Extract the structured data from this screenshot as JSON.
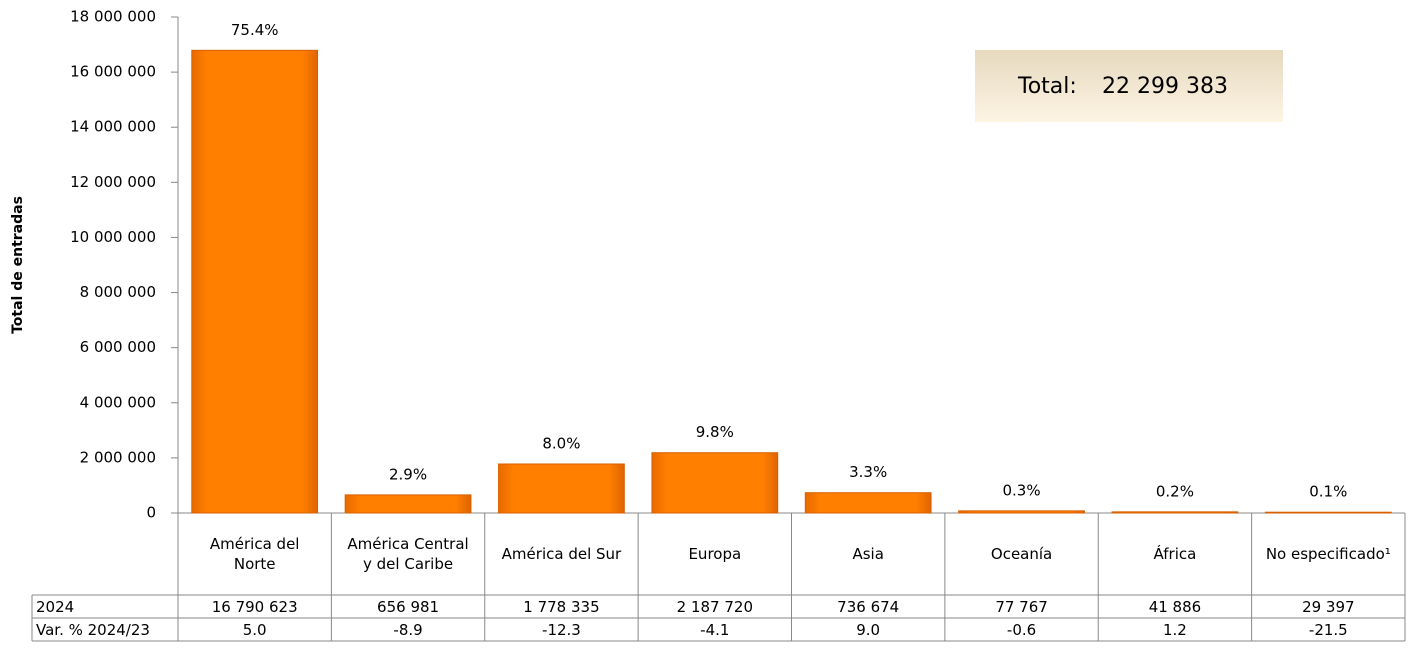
{
  "chart_data": {
    "type": "bar",
    "ylabel": "Total de entradas",
    "categories": [
      "América del Norte",
      "América Central y del Caribe",
      "América del Sur",
      "Europa",
      "Asia",
      "Oceanía",
      "África",
      "No especificado¹"
    ],
    "values": [
      16790623,
      656981,
      1778335,
      2187720,
      736674,
      77767,
      41886,
      29397
    ],
    "color": "#ff7f00",
    "shares": [
      75.4,
      2.9,
      8.0,
      9.8,
      3.3,
      0.3,
      0.2,
      0.1
    ],
    "share_labels": [
      "75.4%",
      "2.9%",
      "8.0%",
      "9.8%",
      "3.3%",
      "0.3%",
      "0.2%",
      "0.1%"
    ],
    "ylim": [
      0,
      18000000
    ],
    "yticks": [
      0,
      {
        "value": 2000000,
        "label": "2 000 000"
      },
      {
        "value": 4000000,
        "label": "4 000 000"
      },
      {
        "value": 6000000,
        "label": "6 000 000"
      },
      {
        "value": 8000000,
        "label": "8 000 000"
      },
      {
        "value": 10000000,
        "label": "10 000 000"
      },
      {
        "value": 12000000,
        "label": "12 000 000"
      },
      {
        "value": 14000000,
        "label": "14 000 000"
      },
      {
        "value": 16000000,
        "label": "16 000 000"
      },
      {
        "value": 18000000,
        "label": "18 000 000"
      }
    ],
    "total": {
      "label": "Total:",
      "value": 22299383,
      "value_label": "22 299 383"
    },
    "table": {
      "row_label": "2024",
      "value_labels": [
        "16 790 623",
        "656 981",
        "1 778 335",
        "2 187 720",
        "736 674",
        "77 767",
        "41 886",
        "29 397"
      ],
      "variation": {
        "label": "Var. % 2024/23",
        "values": [
          5.0,
          -8.9,
          -12.3,
          -4.1,
          9.0,
          -0.6,
          1.2,
          -21.5
        ],
        "value_labels": [
          "5.0",
          "-8.9",
          "-12.3",
          "-4.1",
          "9.0",
          "-0.6",
          "1.2",
          "-21.5"
        ]
      }
    }
  }
}
